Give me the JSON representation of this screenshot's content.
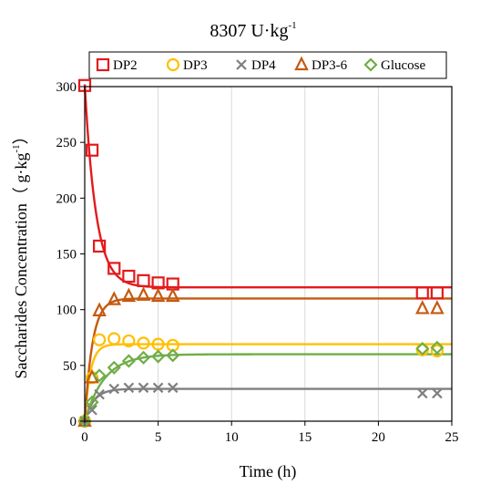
{
  "chart_data": {
    "type": "scatter",
    "title_main": "8307 U·kg",
    "title_sup": "-1",
    "xlabel": "Time (h)",
    "ylabel_main": "Saccharides Concentration（ g·kg",
    "ylabel_sup": "-1",
    "ylabel_end": "）",
    "xlim": [
      0,
      25
    ],
    "ylim": [
      0,
      300
    ],
    "xticks": [
      0,
      5,
      10,
      15,
      20,
      25
    ],
    "yticks": [
      0,
      50,
      100,
      150,
      200,
      250,
      300
    ],
    "grid": "vertical",
    "legend_position": "top",
    "series": [
      {
        "name": "DP2",
        "color": "#e31a1c",
        "marker": "square",
        "x": [
          0,
          0.5,
          1,
          2,
          3,
          4,
          5,
          6,
          23,
          24
        ],
        "y": [
          301,
          243,
          157,
          137,
          130,
          126,
          124,
          123,
          115,
          115
        ],
        "fit": {
          "plateau": 120,
          "y0": 302,
          "k": 1.3
        }
      },
      {
        "name": "DP3",
        "color": "#ffc000",
        "marker": "circle",
        "x": [
          0,
          0.5,
          1,
          2,
          3,
          4,
          5,
          6,
          23,
          24
        ],
        "y": [
          0,
          39,
          73,
          74,
          72,
          70,
          69,
          68,
          64,
          63
        ],
        "fit": {
          "plateau": 69,
          "y0": 0,
          "k": 2.6
        }
      },
      {
        "name": "DP4",
        "color": "#7f7f7f",
        "marker": "x",
        "x": [
          0,
          0.5,
          1,
          2,
          3,
          4,
          5,
          6,
          23,
          24
        ],
        "y": [
          0,
          10,
          24,
          29,
          30,
          30,
          30,
          30,
          25,
          25
        ],
        "fit": {
          "plateau": 29,
          "y0": 0,
          "k": 1.6
        }
      },
      {
        "name": "DP3-6",
        "color": "#c55a11",
        "marker": "triangle",
        "x": [
          0,
          0.5,
          1,
          2,
          3,
          4,
          5,
          6,
          23,
          24
        ],
        "y": [
          0,
          39,
          99,
          109,
          112,
          113,
          112,
          112,
          101,
          101
        ],
        "fit": {
          "plateau": 110,
          "y0": 0,
          "k": 1.9
        }
      },
      {
        "name": "Glucose",
        "color": "#70ad47",
        "marker": "diamond",
        "x": [
          0,
          0.5,
          1,
          2,
          3,
          4,
          5,
          6,
          23,
          24
        ],
        "y": [
          0,
          17,
          41,
          48,
          54,
          57,
          58,
          59,
          65,
          66
        ],
        "fit": {
          "plateau": 60,
          "y0": 0,
          "k": 0.75
        }
      }
    ]
  }
}
